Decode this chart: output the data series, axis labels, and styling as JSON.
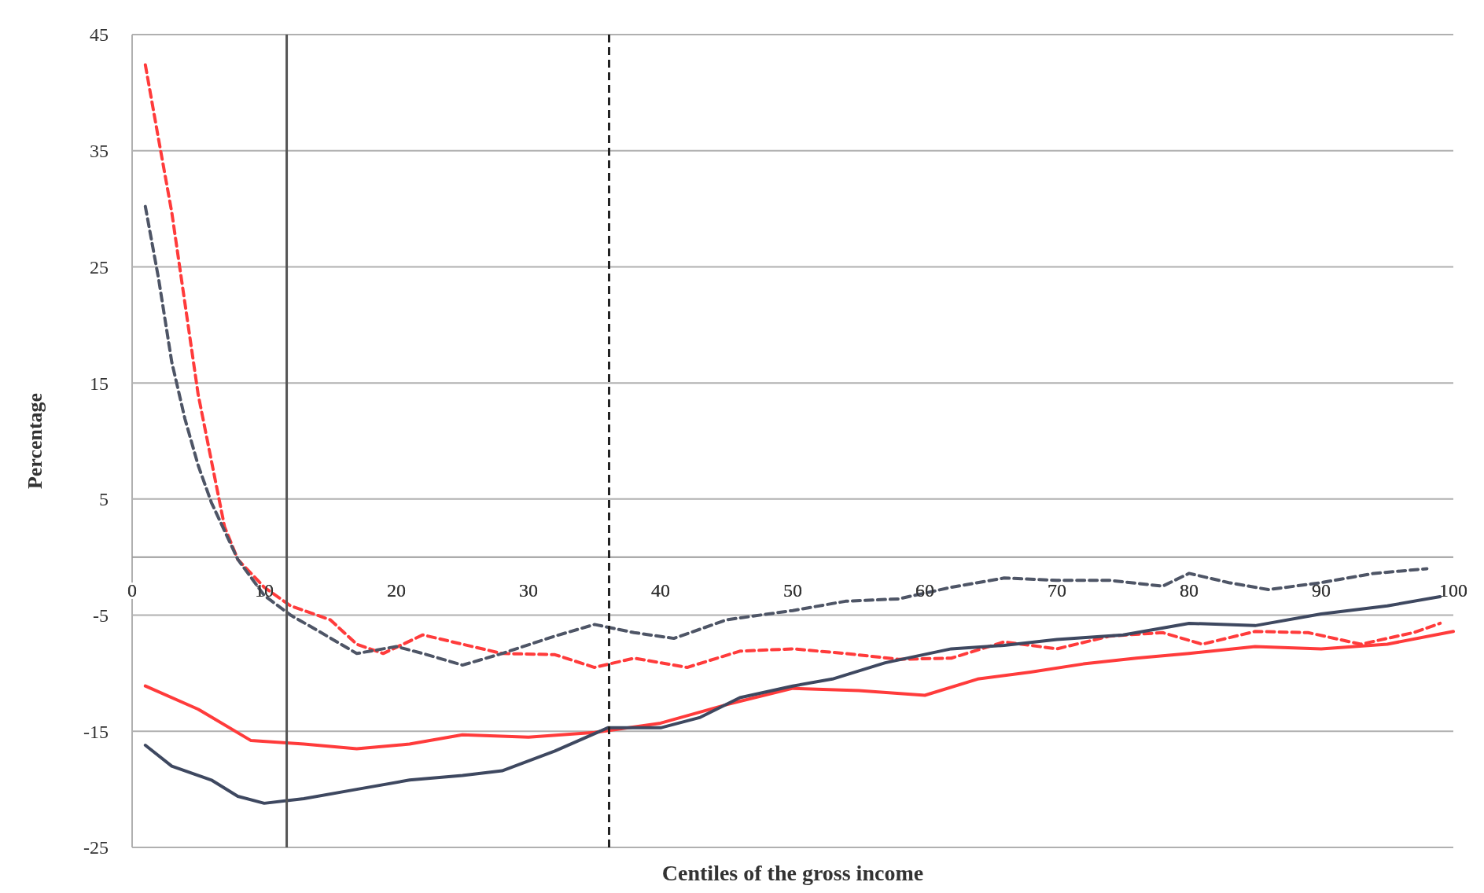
{
  "chart_data": {
    "type": "line",
    "xlabel": "Centiles of the gross income",
    "ylabel": "Percentage",
    "xlim": [
      0,
      100
    ],
    "ylim": [
      -25,
      45
    ],
    "xticks": [
      0,
      10,
      20,
      30,
      40,
      50,
      60,
      70,
      80,
      90,
      100
    ],
    "yticks": [
      -25,
      -15,
      -5,
      5,
      15,
      25,
      35,
      45
    ],
    "grid": "y",
    "marker": "none",
    "ref_lines": [
      {
        "axis": "x",
        "value": 11.7,
        "color": "#555555",
        "line_style": "solid"
      },
      {
        "axis": "x",
        "value": 36.1,
        "color": "#222222",
        "line_style": "dashed"
      }
    ],
    "series": [
      {
        "color": "#ff3b3b",
        "line_style": "dashed",
        "x": [
          1,
          2,
          3,
          5,
          7,
          8,
          10,
          12,
          15,
          17,
          19,
          22,
          25,
          28,
          32,
          35,
          38,
          42,
          46,
          50,
          54,
          58,
          62,
          66,
          70,
          74,
          78,
          81,
          85,
          89,
          93,
          97,
          99
        ],
        "values": [
          42.4,
          36,
          29.7,
          14,
          2.6,
          -0.2,
          -2.6,
          -4.2,
          -5.4,
          -7.5,
          -8.3,
          -6.7,
          -7.5,
          -8.3,
          -8.4,
          -9.5,
          -8.7,
          -9.5,
          -8.1,
          -7.9,
          -8.3,
          -8.8,
          -8.7,
          -7.3,
          -7.9,
          -6.8,
          -6.5,
          -7.5,
          -6.4,
          -6.5,
          -7.5,
          -6.5,
          -5.7
        ]
      },
      {
        "color": "#4e5566",
        "line_style": "dashed",
        "x": [
          1,
          2,
          3,
          4,
          5,
          6,
          8,
          10,
          12,
          14,
          17,
          20,
          22,
          25,
          28,
          32,
          35,
          38,
          41,
          45,
          50,
          54,
          58,
          62,
          66,
          70,
          74,
          78,
          80,
          83,
          86,
          90,
          94,
          98
        ],
        "values": [
          30.2,
          24,
          16.8,
          11.9,
          7.9,
          4.7,
          -0.2,
          -3.3,
          -5,
          -6.3,
          -8.3,
          -7.7,
          -8.3,
          -9.3,
          -8.3,
          -6.8,
          -5.8,
          -6.5,
          -7,
          -5.4,
          -4.6,
          -3.8,
          -3.6,
          -2.6,
          -1.8,
          -2,
          -2,
          -2.5,
          -1.4,
          -2.2,
          -2.8,
          -2.2,
          -1.4,
          -1
        ]
      },
      {
        "color": "#ff3b3b",
        "line_style": "solid",
        "x": [
          1,
          5,
          9,
          13,
          17,
          21,
          25,
          30,
          35,
          40,
          45,
          50,
          55,
          60,
          64,
          68,
          72,
          76,
          80,
          85,
          90,
          95,
          100
        ],
        "values": [
          -11.1,
          -13.1,
          -15.8,
          -16.1,
          -16.5,
          -16.1,
          -15.3,
          -15.5,
          -15.1,
          -14.3,
          -12.7,
          -11.3,
          -11.5,
          -11.9,
          -10.5,
          -9.9,
          -9.2,
          -8.7,
          -8.3,
          -7.7,
          -7.9,
          -7.5,
          -6.4
        ]
      },
      {
        "color": "#3e4860",
        "line_style": "solid",
        "x": [
          1,
          3,
          6,
          8,
          10,
          13,
          17,
          21,
          25,
          28,
          32,
          36,
          40,
          43,
          46,
          50,
          53,
          57,
          62,
          66,
          70,
          75,
          80,
          85,
          90,
          95,
          99
        ],
        "values": [
          -16.2,
          -18,
          -19.2,
          -20.6,
          -21.2,
          -20.8,
          -20,
          -19.2,
          -18.8,
          -18.4,
          -16.7,
          -14.7,
          -14.7,
          -13.8,
          -12.1,
          -11.1,
          -10.5,
          -9.1,
          -7.9,
          -7.6,
          -7.1,
          -6.7,
          -5.7,
          -5.9,
          -4.9,
          -4.2,
          -3.4
        ]
      }
    ]
  }
}
